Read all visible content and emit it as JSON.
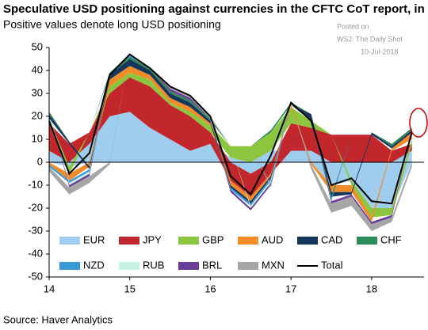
{
  "chart_data": {
    "type": "stacked_area",
    "title": "Speculative USD positioning against currencies in the CFTC CoT report, in $ bn",
    "subtitle": "Positive values denote long USD positioning",
    "watermark": [
      "Posted on",
      "WSJ: The Daily Shot",
      "10-Jul-2018"
    ],
    "source": "Source: Haver Analytics",
    "x": [
      14,
      14.25,
      14.5,
      14.75,
      15,
      15.25,
      15.5,
      15.75,
      16,
      16.25,
      16.5,
      16.75,
      17,
      17.25,
      17.5,
      17.75,
      18,
      18.25,
      18.5
    ],
    "xlim": [
      14,
      18.65
    ],
    "xticks": [
      14,
      15,
      16,
      17,
      18
    ],
    "ylim": [
      -50,
      50
    ],
    "yticks": [
      -50,
      -40,
      -30,
      -20,
      -10,
      0,
      10,
      20,
      30,
      40,
      50
    ],
    "legend": "bottom-left",
    "series": [
      {
        "name": "EUR",
        "color": "#9fcdee",
        "values": [
          5,
          -2,
          8,
          20,
          22,
          15,
          10,
          5,
          8,
          2,
          -5,
          5,
          5,
          5,
          -10,
          -8,
          -20,
          -20,
          5
        ]
      },
      {
        "name": "JPY",
        "color": "#c1272d",
        "values": [
          12,
          8,
          5,
          10,
          15,
          18,
          15,
          15,
          5,
          -8,
          -10,
          -5,
          12,
          10,
          12,
          12,
          12,
          5,
          3
        ]
      },
      {
        "name": "GBP",
        "color": "#8cc63f",
        "values": [
          2,
          -3,
          0,
          3,
          2,
          3,
          1,
          2,
          3,
          5,
          7,
          8,
          7,
          3,
          0,
          -2,
          -4,
          -3,
          2
        ]
      },
      {
        "name": "AUD",
        "color": "#f28c28",
        "values": [
          -1,
          -3,
          -2,
          3,
          3,
          2,
          2,
          2,
          1,
          -2,
          -2,
          -1,
          1,
          -1,
          -3,
          -3,
          -2,
          1,
          3
        ]
      },
      {
        "name": "CAD",
        "color": "#17365d",
        "values": [
          2,
          1,
          -1,
          2,
          3,
          2,
          2,
          2,
          1,
          -1,
          -1,
          -1,
          0,
          3,
          -2,
          -1,
          1,
          1,
          1
        ]
      },
      {
        "name": "CHF",
        "color": "#2e8b57",
        "values": [
          1,
          0,
          0,
          1,
          1,
          1,
          1,
          1,
          1,
          0,
          0,
          1,
          1,
          0,
          -1,
          0,
          0,
          1,
          1
        ]
      },
      {
        "name": "NZD",
        "color": "#3a9ad9",
        "values": [
          -1,
          -1,
          -1,
          0,
          1,
          0,
          0,
          0,
          0,
          -1,
          -1,
          -1,
          0,
          0,
          -1,
          0,
          0,
          0,
          0
        ]
      },
      {
        "name": "RUB",
        "color": "#c9f1e0",
        "values": [
          0,
          -1,
          -1,
          0,
          0,
          0,
          0,
          0,
          0,
          0,
          -1,
          -1,
          0,
          0,
          0,
          0,
          0,
          0,
          0
        ]
      },
      {
        "name": "BRL",
        "color": "#6a3d9a",
        "values": [
          0,
          -1,
          -1,
          0,
          0,
          0,
          1,
          1,
          0,
          -1,
          -1,
          -1,
          0,
          0,
          -1,
          -1,
          -1,
          -1,
          0
        ]
      },
      {
        "name": "MXN",
        "color": "#a6a6a6",
        "values": [
          -2,
          -3,
          -3,
          -1,
          0,
          0,
          1,
          1,
          1,
          0,
          0,
          -1,
          0,
          -2,
          -4,
          -4,
          -3,
          -2,
          -2
        ]
      },
      {
        "name": "Total",
        "type": "line",
        "color": "#000000",
        "values": [
          18,
          -5,
          4,
          38,
          47,
          41,
          33,
          29,
          20,
          -6,
          -14,
          3,
          26,
          18,
          -10,
          -7,
          -17,
          -18,
          13
        ]
      }
    ]
  }
}
